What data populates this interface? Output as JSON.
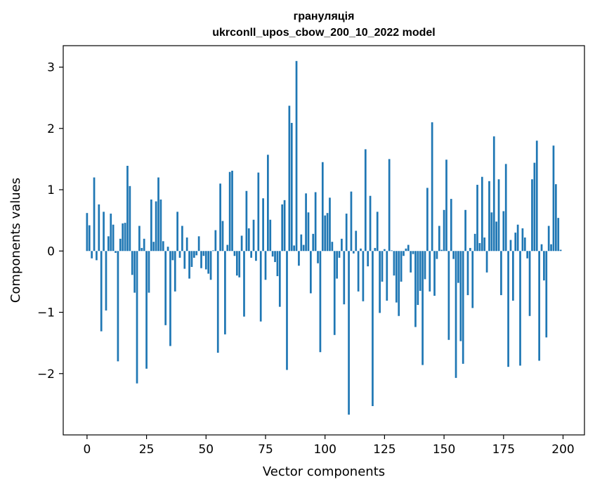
{
  "chart_data": {
    "type": "bar",
    "title_line1": "грануляція",
    "title_line2": "ukrconll_upos_cbow_200_10_2022 model",
    "xlabel": "Vector components",
    "ylabel": "Components values",
    "xlim": [
      -10,
      209
    ],
    "ylim": [
      -3.0,
      3.35
    ],
    "xticks": [
      0,
      25,
      50,
      75,
      100,
      125,
      150,
      175,
      200
    ],
    "yticks": [
      -2,
      -1,
      0,
      1,
      2,
      3
    ],
    "ytick_labels": [
      "−2",
      "−1",
      "0",
      "1",
      "2",
      "3"
    ],
    "bar_color": "#1f77b4",
    "grid": false,
    "legend": "none",
    "values": [
      0.62,
      0.42,
      -0.12,
      1.2,
      -0.15,
      0.76,
      -1.31,
      0.64,
      -0.97,
      0.24,
      0.61,
      0.43,
      -0.03,
      -1.8,
      0.2,
      0.45,
      0.46,
      1.39,
      1.06,
      -0.39,
      -0.68,
      -2.16,
      0.41,
      0.05,
      0.2,
      -1.92,
      -0.68,
      0.84,
      0.15,
      0.81,
      1.2,
      0.84,
      0.16,
      -1.21,
      0.07,
      -1.55,
      -0.15,
      -0.66,
      0.64,
      -0.11,
      0.41,
      -0.29,
      0.22,
      -0.45,
      -0.26,
      -0.11,
      -0.07,
      0.24,
      -0.28,
      -0.08,
      -0.3,
      -0.37,
      -0.47,
      0.01,
      0.34,
      -1.66,
      1.1,
      0.49,
      -1.36,
      0.1,
      1.29,
      1.31,
      -0.08,
      -0.4,
      -0.43,
      0.25,
      -1.07,
      0.98,
      0.37,
      -0.11,
      0.51,
      -0.16,
      1.28,
      -1.15,
      0.86,
      -0.47,
      1.57,
      0.51,
      -0.09,
      -0.18,
      -0.41,
      -0.91,
      0.76,
      0.83,
      -1.94,
      2.37,
      2.09,
      0.09,
      3.1,
      -0.24,
      0.27,
      0.1,
      0.94,
      0.63,
      -0.69,
      0.28,
      0.96,
      -0.2,
      -1.65,
      1.45,
      0.58,
      0.62,
      0.87,
      0.15,
      -1.37,
      -0.45,
      -0.11,
      0.2,
      -0.87,
      0.61,
      -2.67,
      0.97,
      -0.04,
      0.33,
      -0.66,
      0.04,
      -0.82,
      1.66,
      -0.25,
      0.9,
      -2.53,
      0.05,
      0.64,
      -1.01,
      -0.5,
      0.03,
      -0.81,
      1.5,
      0.01,
      -0.4,
      -0.84,
      -1.06,
      -0.5,
      -0.08,
      0.04,
      0.1,
      -0.35,
      -0.05,
      -1.24,
      -0.88,
      -0.65,
      -1.86,
      -0.46,
      1.03,
      -0.66,
      2.1,
      -0.73,
      -0.13,
      0.41,
      0.02,
      0.67,
      1.49,
      -1.45,
      0.85,
      -0.13,
      -2.07,
      -0.52,
      -1.47,
      -1.84,
      0.67,
      -0.72,
      0.05,
      -0.93,
      0.28,
      1.08,
      0.13,
      1.21,
      0.22,
      -0.35,
      1.14,
      0.63,
      1.87,
      0.48,
      1.17,
      -0.72,
      0.65,
      1.42,
      -1.89,
      0.18,
      -0.81,
      0.3,
      0.43,
      -1.87,
      0.37,
      0.22,
      -0.12,
      -1.06,
      1.17,
      1.44,
      1.8,
      -1.79,
      0.11,
      -0.48,
      -1.41,
      0.41,
      0.11,
      1.72,
      1.09,
      0.54,
      0.02
    ]
  }
}
